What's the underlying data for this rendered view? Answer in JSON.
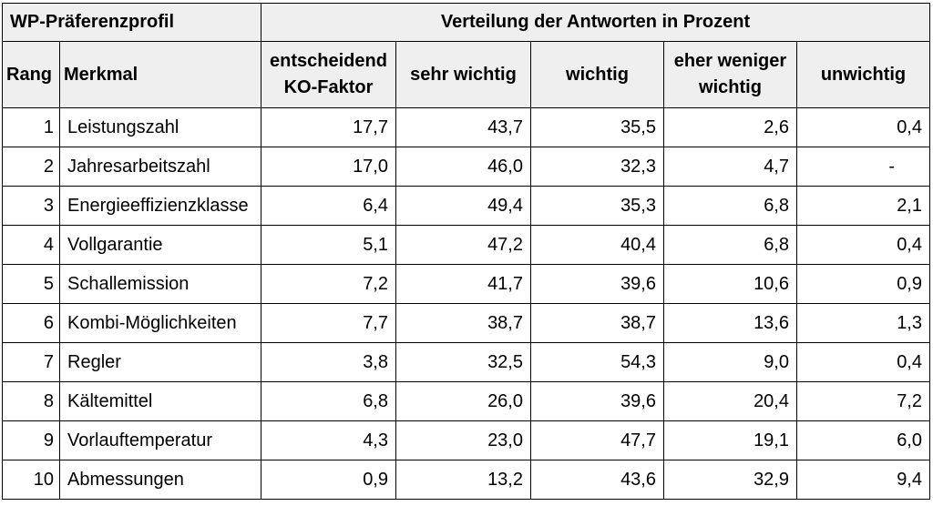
{
  "header": {
    "profile_title": "WP-Präferenzprofil",
    "distribution_title": "Verteilung der Antworten in Prozent",
    "col_rank": "Rang",
    "col_feature": "Merkmal",
    "col_decisive": [
      "entscheidend",
      "KO-Faktor"
    ],
    "col_very_important": "sehr wichtig",
    "col_important": "wichtig",
    "col_less_important": [
      "eher weniger",
      "wichtig"
    ],
    "col_unimportant": "unwichtig"
  },
  "rows": [
    {
      "rank": "1",
      "feature": "Leistungszahl",
      "decisive": "17,7",
      "very_important": "43,7",
      "important": "35,5",
      "less_important": "2,6",
      "unimportant": "0,4"
    },
    {
      "rank": "2",
      "feature": "Jahresarbeitszahl",
      "decisive": "17,0",
      "very_important": "46,0",
      "important": "32,3",
      "less_important": "4,7",
      "unimportant": "-"
    },
    {
      "rank": "3",
      "feature": "Energieeffizienzklasse",
      "decisive": "6,4",
      "very_important": "49,4",
      "important": "35,3",
      "less_important": "6,8",
      "unimportant": "2,1"
    },
    {
      "rank": "4",
      "feature": "Vollgarantie",
      "decisive": "5,1",
      "very_important": "47,2",
      "important": "40,4",
      "less_important": "6,8",
      "unimportant": "0,4"
    },
    {
      "rank": "5",
      "feature": "Schallemission",
      "decisive": "7,2",
      "very_important": "41,7",
      "important": "39,6",
      "less_important": "10,6",
      "unimportant": "0,9"
    },
    {
      "rank": "6",
      "feature": "Kombi-Möglichkeiten",
      "decisive": "7,7",
      "very_important": "38,7",
      "important": "38,7",
      "less_important": "13,6",
      "unimportant": "1,3"
    },
    {
      "rank": "7",
      "feature": "Regler",
      "decisive": "3,8",
      "very_important": "32,5",
      "important": "54,3",
      "less_important": "9,0",
      "unimportant": "0,4"
    },
    {
      "rank": "8",
      "feature": "Kältemittel",
      "decisive": "6,8",
      "very_important": "26,0",
      "important": "39,6",
      "less_important": "20,4",
      "unimportant": "7,2"
    },
    {
      "rank": "9",
      "feature": "Vorlauftemperatur",
      "decisive": "4,3",
      "very_important": "23,0",
      "important": "47,7",
      "less_important": "19,1",
      "unimportant": "6,0"
    },
    {
      "rank": "10",
      "feature": "Abmessungen",
      "decisive": "0,9",
      "very_important": "13,2",
      "important": "43,6",
      "less_important": "32,9",
      "unimportant": "9,4"
    }
  ]
}
